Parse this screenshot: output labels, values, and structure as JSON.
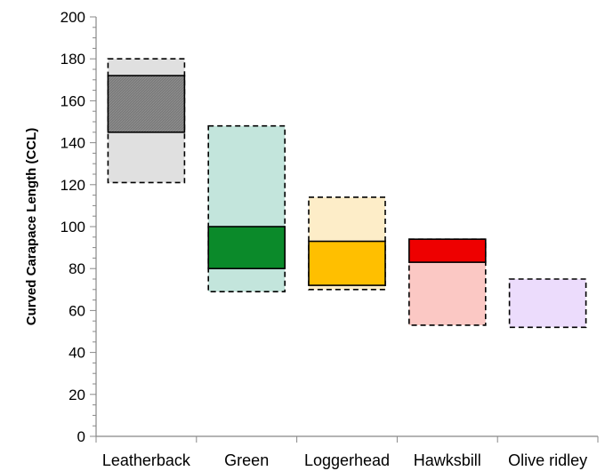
{
  "chart_data": {
    "type": "floating-bar",
    "title": "",
    "xlabel": "",
    "ylabel": "Curved Carapace Length (CCL)",
    "ylim": [
      0,
      200
    ],
    "y_ticks": [
      0,
      20,
      40,
      60,
      80,
      100,
      120,
      140,
      160,
      180,
      200
    ],
    "grid": false,
    "legend": "none",
    "categories": [
      "Leatherback",
      "Green",
      "Loggerhead",
      "Hawksbill",
      "Olive ridley"
    ],
    "series": [
      {
        "values": [
          {
            "range_min": 121,
            "range_max": 180,
            "range_fill": "#e0e0e0",
            "core_min": 145,
            "core_max": 172,
            "core_fill": "#808080"
          },
          {
            "range_min": 69,
            "range_max": 148,
            "range_fill": "#c3e5dc",
            "core_min": 80,
            "core_max": 100,
            "core_fill": "#0b8a2a"
          },
          {
            "range_min": 70,
            "range_max": 114,
            "range_fill": "#fdedc8",
            "core_min": 72,
            "core_max": 93,
            "core_fill": "#ffbf00"
          },
          {
            "range_min": 53,
            "range_max": 94,
            "range_fill": "#fbc8c4",
            "core_min": 83,
            "core_max": 94,
            "core_fill": "#ee0000"
          },
          {
            "range_min": 52,
            "range_max": 75,
            "range_fill": "#ecdcfc",
            "core_min": null,
            "core_max": null,
            "core_fill": null
          }
        ]
      }
    ]
  }
}
